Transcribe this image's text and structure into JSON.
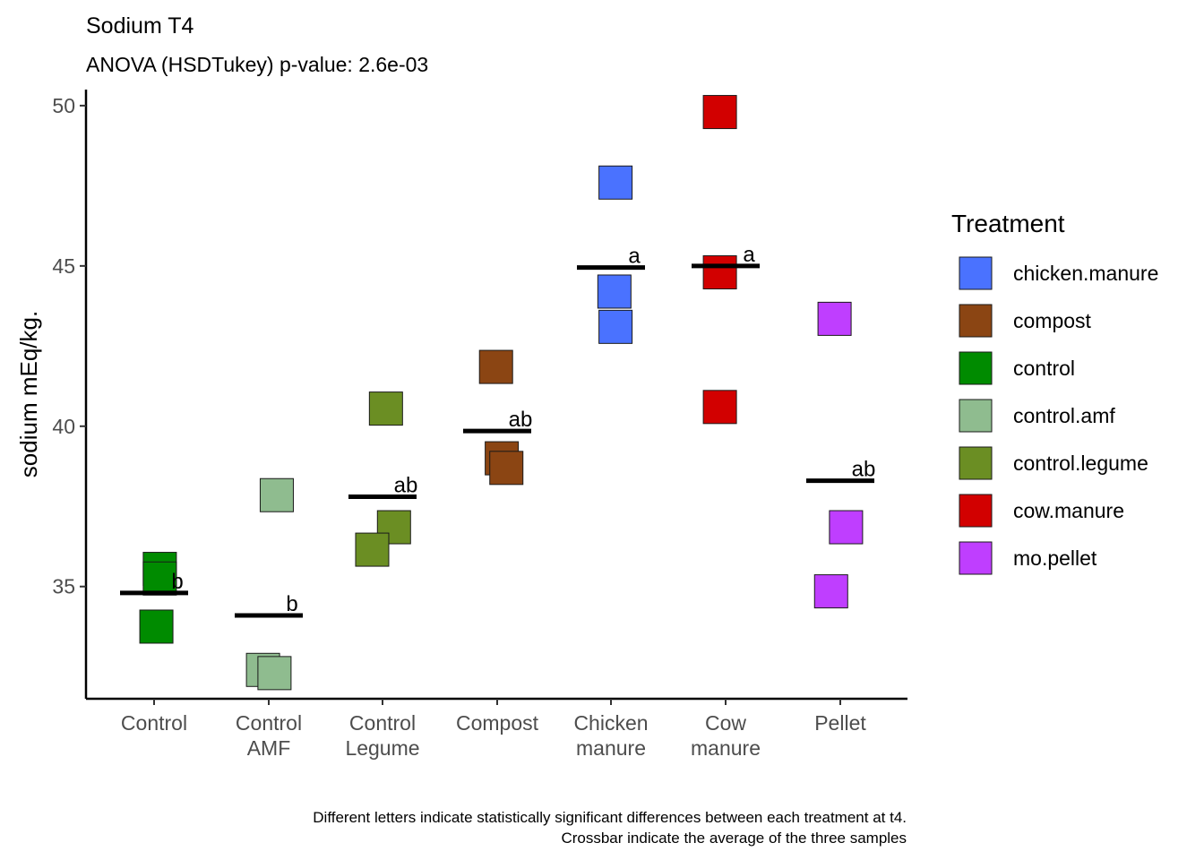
{
  "chart_data": {
    "type": "scatter",
    "title": "Sodium T4",
    "subtitle": "ANOVA (HSDTukey) p-value: 2.6e-03",
    "xlabel": "",
    "ylabel": "sodium mEq/kg.",
    "ylim": [
      31.5,
      50.5
    ],
    "yticks": [
      35,
      40,
      45,
      50
    ],
    "grid": false,
    "legend_position": "right",
    "legend_title": "Treatment",
    "categories": [
      {
        "label": [
          "Control"
        ],
        "treatment": "control"
      },
      {
        "label": [
          "Control",
          "AMF"
        ],
        "treatment": "control.amf"
      },
      {
        "label": [
          "Control",
          "Legume"
        ],
        "treatment": "control.legume"
      },
      {
        "label": [
          "Compost"
        ],
        "treatment": "compost"
      },
      {
        "label": [
          "Chicken",
          "manure"
        ],
        "treatment": "chicken.manure"
      },
      {
        "label": [
          "Cow",
          "manure"
        ],
        "treatment": "cow.manure"
      },
      {
        "label": [
          "Pellet"
        ],
        "treatment": "mo.pellet"
      }
    ],
    "series": [
      {
        "category": "Control",
        "treatment": "control",
        "values": [
          35.55,
          35.25,
          33.75
        ],
        "jitter": [
          0.05,
          0.05,
          0.02
        ],
        "mean": 34.8,
        "letter": "b"
      },
      {
        "category": "Control AMF",
        "treatment": "control.amf",
        "values": [
          37.85,
          32.4,
          32.3
        ],
        "jitter": [
          0.07,
          -0.05,
          0.05
        ],
        "mean": 34.1,
        "letter": "b"
      },
      {
        "category": "Control Legume",
        "treatment": "control.legume",
        "values": [
          40.55,
          36.85,
          36.15
        ],
        "jitter": [
          0.03,
          0.1,
          -0.09
        ],
        "mean": 37.8,
        "letter": "ab"
      },
      {
        "category": "Compost",
        "treatment": "compost",
        "values": [
          41.85,
          39.0,
          38.7
        ],
        "jitter": [
          -0.01,
          0.04,
          0.08
        ],
        "mean": 39.85,
        "letter": "ab"
      },
      {
        "category": "Chicken manure",
        "treatment": "chicken.manure",
        "values": [
          47.6,
          44.2,
          43.1
        ],
        "jitter": [
          0.04,
          0.03,
          0.04
        ],
        "mean": 44.95,
        "letter": "a"
      },
      {
        "category": "Cow manure",
        "treatment": "cow.manure",
        "values": [
          49.8,
          44.8,
          40.6
        ],
        "jitter": [
          -0.05,
          -0.05,
          -0.05
        ],
        "mean": 45.0,
        "letter": "a"
      },
      {
        "category": "Pellet",
        "treatment": "mo.pellet",
        "values": [
          43.35,
          36.85,
          34.85
        ],
        "jitter": [
          -0.05,
          0.05,
          -0.08
        ],
        "mean": 38.3,
        "letter": "ab"
      }
    ],
    "legend": [
      {
        "label": "chicken.manure",
        "color": "#4a72ff"
      },
      {
        "label": "compost",
        "color": "#8b4513"
      },
      {
        "label": "control",
        "color": "#008b00"
      },
      {
        "label": "control.amf",
        "color": "#8fbc8f"
      },
      {
        "label": "control.legume",
        "color": "#6b8e23"
      },
      {
        "label": "cow.manure",
        "color": "#d20000"
      },
      {
        "label": "mo.pellet",
        "color": "#bf3eff"
      }
    ],
    "caption": [
      "Different letters indicate statistically significant differences between each treatment at t4.",
      "Crossbar indicate the average of the three samples"
    ]
  }
}
